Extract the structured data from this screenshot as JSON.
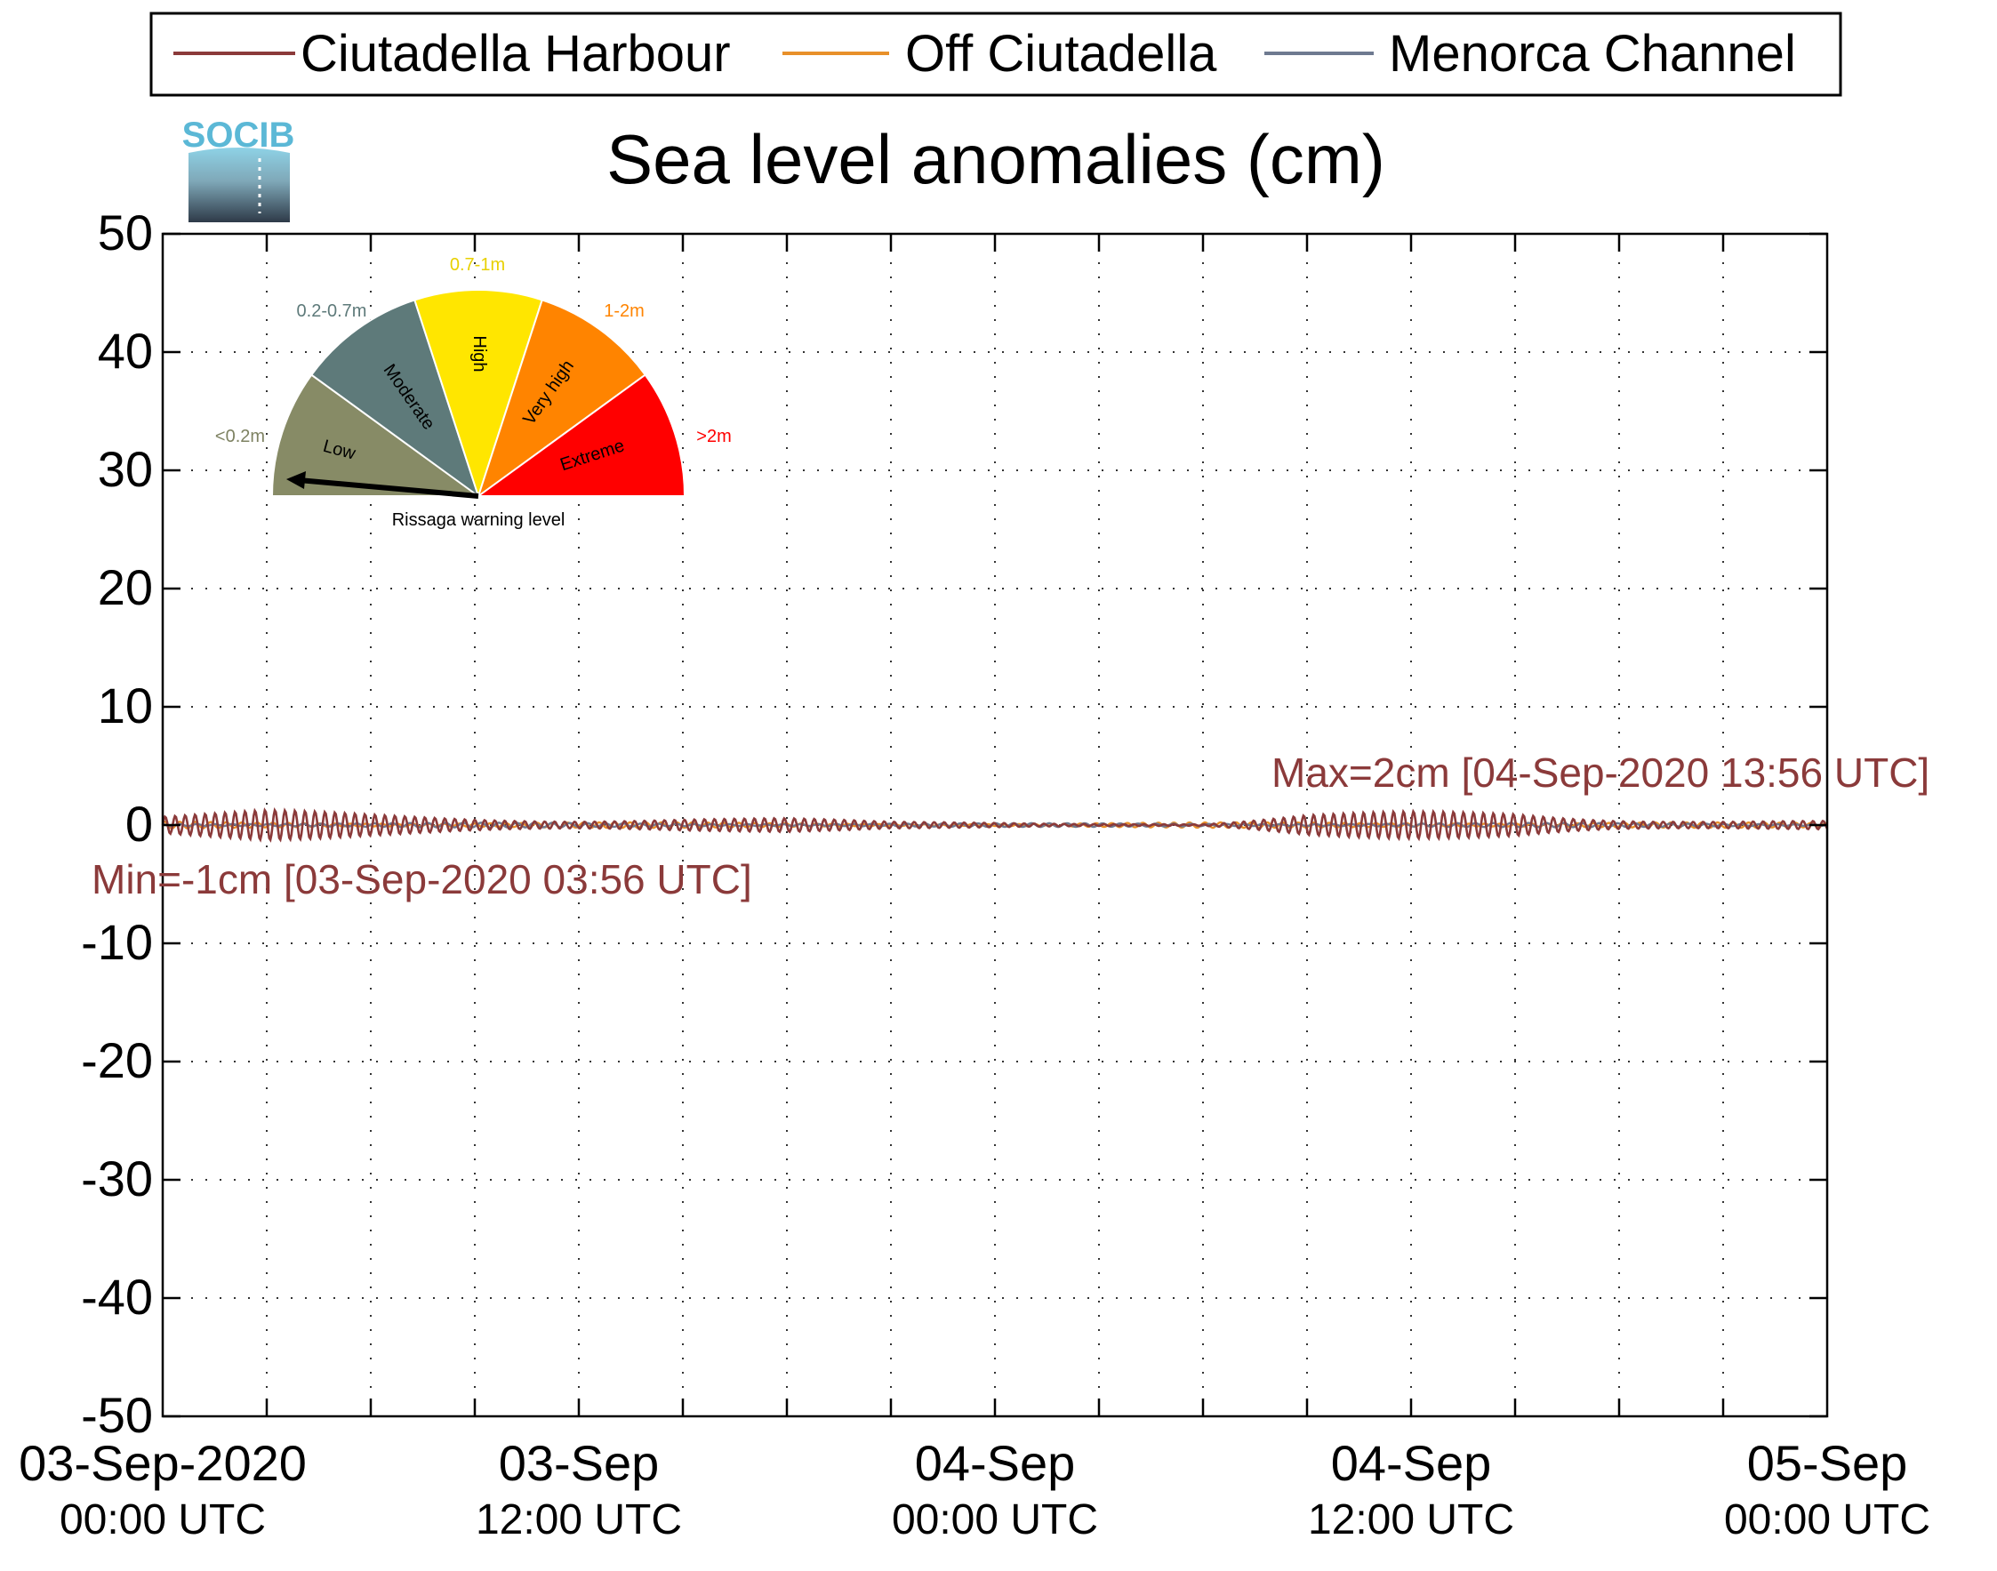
{
  "legend": [
    {
      "name": "Ciutadella Harbour",
      "color": "#8B3A3A"
    },
    {
      "name": "Off Ciutadella",
      "color": "#E8902A"
    },
    {
      "name": "Menorca Channel",
      "color": "#6E7A90"
    }
  ],
  "logo": {
    "text": "SOCIB"
  },
  "gauge": {
    "caption": "Rissaga warning level",
    "level": "Low",
    "segments": [
      {
        "label": "Low",
        "range": "<0.2m",
        "color": "#878B66",
        "range_color": "#7E8262"
      },
      {
        "label": "Moderate",
        "range": "0.2-0.7m",
        "color": "#5E7A7A",
        "range_color": "#5E7A7A"
      },
      {
        "label": "High",
        "range": "0.7-1m",
        "color": "#FFE600",
        "range_color": "#E8D000"
      },
      {
        "label": "Very high",
        "range": "1-2m",
        "color": "#FF8400",
        "range_color": "#FF8400"
      },
      {
        "label": "Extreme",
        "range": ">2m",
        "color": "#FF0000",
        "range_color": "#FF0000"
      }
    ]
  },
  "chart_data": {
    "type": "line",
    "title": "Sea level anomalies (cm)",
    "xlabel": "",
    "ylabel": "",
    "ylim": [
      -50,
      50
    ],
    "yticks": [
      -50,
      -40,
      -30,
      -20,
      -10,
      0,
      10,
      20,
      30,
      40,
      50
    ],
    "xlim": [
      "2020-09-03 00:00",
      "2020-09-05 00:00"
    ],
    "x_major_ticks": [
      {
        "x": "2020-09-03 00:00",
        "line1": "03-Sep-2020",
        "line2": "00:00 UTC"
      },
      {
        "x": "2020-09-03 12:00",
        "line1": "03-Sep",
        "line2": "12:00 UTC"
      },
      {
        "x": "2020-09-04 00:00",
        "line1": "04-Sep",
        "line2": "00:00 UTC"
      },
      {
        "x": "2020-09-04 12:00",
        "line1": "04-Sep",
        "line2": "12:00 UTC"
      },
      {
        "x": "2020-09-05 00:00",
        "line1": "05-Sep",
        "line2": "00:00 UTC"
      }
    ],
    "x_minor_tick_hours": 3,
    "grid": true,
    "legend_position": "top",
    "series": [
      {
        "name": "Ciutadella Harbour",
        "color": "#8B3A3A",
        "x": [
          "2020-09-03 00:00",
          "2020-09-03 03:00",
          "2020-09-03 06:00",
          "2020-09-03 09:00",
          "2020-09-03 12:00",
          "2020-09-03 15:00",
          "2020-09-03 18:00",
          "2020-09-03 21:00",
          "2020-09-04 00:00",
          "2020-09-04 03:00",
          "2020-09-04 06:00",
          "2020-09-04 09:00",
          "2020-09-04 12:00",
          "2020-09-04 15:00",
          "2020-09-04 18:00",
          "2020-09-04 21:00",
          "2020-09-05 00:00"
        ],
        "amplitude": [
          1.0,
          1.3,
          1.0,
          0.8,
          0.7,
          0.7,
          0.6,
          0.3,
          0.3,
          0.2,
          0.1,
          0.9,
          1.2,
          1.4,
          0.8,
          0.5,
          0.4
        ]
      },
      {
        "name": "Off Ciutadella",
        "color": "#E8902A",
        "x": [
          "2020-09-03 00:00",
          "2020-09-03 12:00",
          "2020-09-04 00:00",
          "2020-09-04 12:00",
          "2020-09-05 00:00"
        ],
        "amplitude": [
          0.3,
          0.25,
          0.15,
          0.3,
          0.2
        ]
      },
      {
        "name": "Menorca Channel",
        "color": "#6E7A90",
        "x": [
          "2020-09-03 00:00",
          "2020-09-03 12:00",
          "2020-09-04 00:00",
          "2020-09-04 12:00",
          "2020-09-05 00:00"
        ],
        "amplitude": [
          0.2,
          0.2,
          0.15,
          0.2,
          0.15
        ]
      }
    ],
    "annotations": {
      "max": {
        "text": "Max=2cm [04-Sep-2020 13:56 UTC]",
        "x": "2020-09-04 13:56",
        "y": 2
      },
      "min": {
        "text": "Min=-1cm [03-Sep-2020 03:56 UTC]",
        "x": "2020-09-03 03:56",
        "y": -1
      }
    }
  }
}
